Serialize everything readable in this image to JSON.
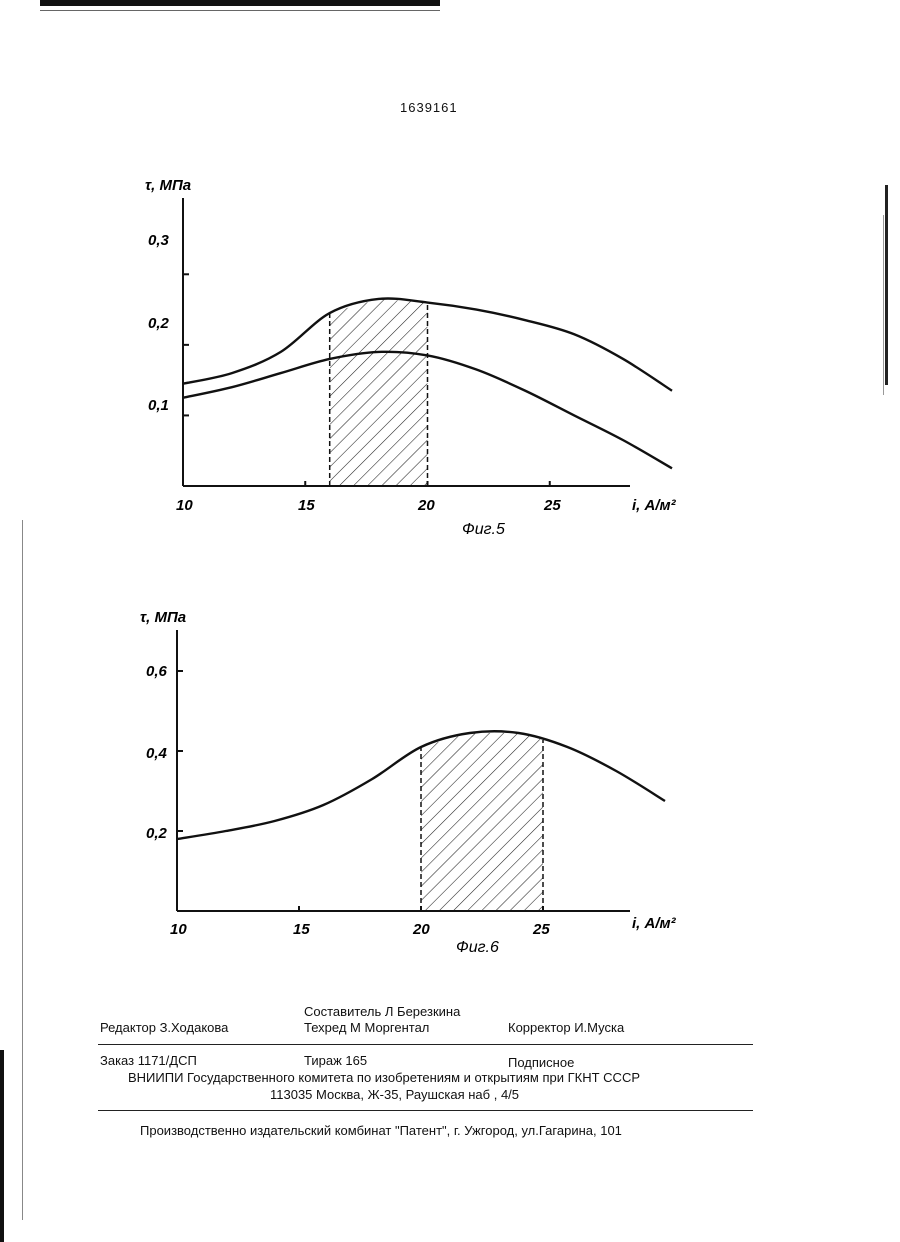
{
  "patent_number": "1639161",
  "figures": [
    {
      "caption": "Фиг.5",
      "ylabel": "τ, МПа",
      "xlabel": "i, А/м²",
      "x_ticks": [
        "10",
        "15",
        "20",
        "25"
      ],
      "y_ticks": [
        "0,1",
        "0,2",
        "0,3"
      ],
      "shaded_range": [
        16,
        20
      ]
    },
    {
      "caption": "Фиг.6",
      "ylabel": "τ, МПа",
      "xlabel": "i, А/м²",
      "x_ticks": [
        "10",
        "15",
        "20",
        "25"
      ],
      "y_ticks": [
        "0,2",
        "0,4",
        "0,6"
      ],
      "shaded_range": [
        20,
        25
      ]
    }
  ],
  "chart_data": [
    {
      "type": "line",
      "title": "Фиг.5",
      "xlabel": "i, А/м²",
      "ylabel": "τ, МПа",
      "xlim": [
        10,
        30
      ],
      "ylim": [
        0,
        0.35
      ],
      "shaded_x_range": [
        16,
        20
      ],
      "series": [
        {
          "x": [
            10,
            12,
            14,
            16,
            18,
            20,
            22,
            24,
            26,
            28,
            30
          ],
          "y": [
            0.145,
            0.16,
            0.19,
            0.245,
            0.265,
            0.26,
            0.25,
            0.235,
            0.215,
            0.18,
            0.135
          ]
        },
        {
          "x": [
            10,
            12,
            14,
            16,
            18,
            20,
            22,
            24,
            26,
            28,
            30
          ],
          "y": [
            0.125,
            0.14,
            0.16,
            0.18,
            0.19,
            0.185,
            0.165,
            0.135,
            0.1,
            0.065,
            0.025
          ]
        }
      ]
    },
    {
      "type": "line",
      "title": "Фиг.6",
      "xlabel": "i, А/м²",
      "ylabel": "τ, МПа",
      "xlim": [
        10,
        30
      ],
      "ylim": [
        0,
        0.7
      ],
      "shaded_x_range": [
        20,
        25
      ],
      "series": [
        {
          "x": [
            10,
            12,
            14,
            16,
            18,
            20,
            22,
            24,
            26,
            28,
            30
          ],
          "y": [
            0.18,
            0.2,
            0.225,
            0.265,
            0.33,
            0.41,
            0.445,
            0.445,
            0.41,
            0.35,
            0.275
          ]
        }
      ]
    }
  ],
  "footer": {
    "compiler": "Составитель Л Березкина",
    "editor": "Редактор З.Ходакова",
    "techred": "Техред М Моргентал",
    "corrector": "Корректор И.Муска",
    "order": "Заказ 1171/ДСП",
    "circulation": "Тираж 165",
    "subscription": "Подписное",
    "org": "ВНИИПИ Государственного комитета по изобретениям и открытиям при ГКНТ СССР",
    "address": "113035 Москва, Ж-35, Раушская наб , 4/5",
    "publisher": "Производственно издательский комбинат \"Патент\", г. Ужгород, ул.Гагарина, 101"
  }
}
